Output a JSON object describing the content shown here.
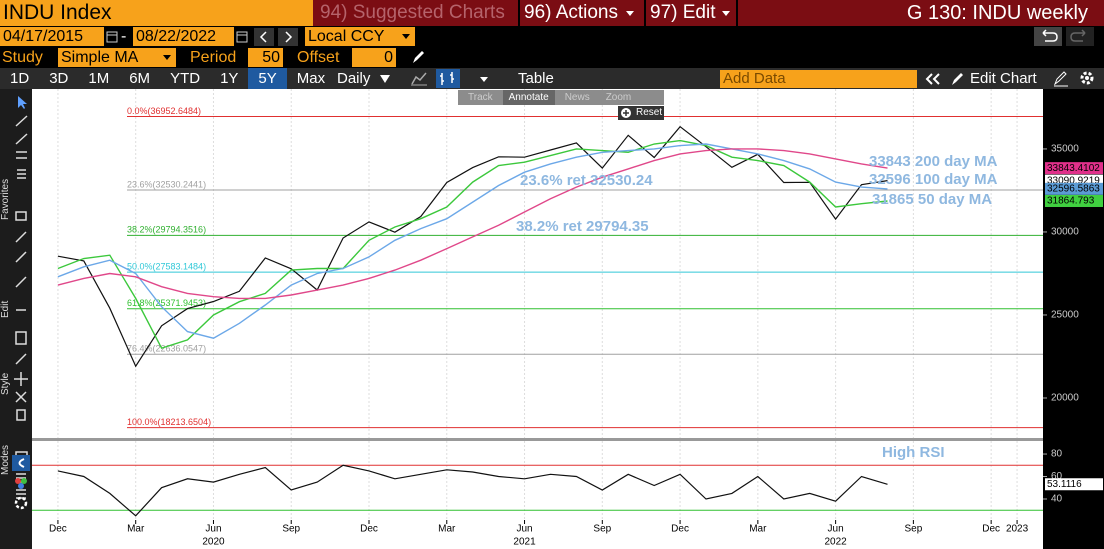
{
  "header": {
    "ticker": "INDU Index",
    "suggested": "94) Suggested Charts",
    "actions": "96) Actions",
    "edit": "97) Edit",
    "chart_id": "G 130: INDU weekly"
  },
  "controls": {
    "start": "04/17/2015",
    "end": "08/22/2022",
    "currency": "Local CCY",
    "study_label": "Study",
    "study": "Simple MA",
    "period_label": "Period",
    "period": "50",
    "offset_label": "Offset",
    "offset": "0"
  },
  "toolbar": {
    "ranges": [
      "1D",
      "3D",
      "1M",
      "6M",
      "YTD",
      "1Y",
      "5Y",
      "Max"
    ],
    "active_range": "5Y",
    "frequency": "Daily",
    "table": "Table",
    "add_data": "Add Data",
    "edit_chart": "Edit Chart"
  },
  "side_labels": [
    "Favorites",
    "Edit",
    "Style",
    "Modes"
  ],
  "overlay_menu": {
    "items": [
      "Track",
      "Annotate",
      "News",
      "Zoom"
    ],
    "reset": "Reset"
  },
  "chart_data": [
    {
      "type": "line",
      "x": [
        "2019-12",
        "2020-01",
        "2020-02",
        "2020-03",
        "2020-04",
        "2020-05",
        "2020-06",
        "2020-07",
        "2020-08",
        "2020-09",
        "2020-10",
        "2020-11",
        "2020-12",
        "2021-01",
        "2021-02",
        "2021-03",
        "2021-04",
        "2021-05",
        "2021-06",
        "2021-07",
        "2021-08",
        "2021-09",
        "2021-10",
        "2021-11",
        "2021-12",
        "2022-01",
        "2022-02",
        "2022-03",
        "2022-04",
        "2022-05",
        "2022-06",
        "2022-07",
        "2022-08"
      ],
      "xlim": [
        "2019-11",
        "2023-02"
      ],
      "xticks": [
        {
          "value": "2019-12",
          "label": "Dec"
        },
        {
          "value": "2020-03",
          "label": "Mar"
        },
        {
          "value": "2020-06",
          "label": "Jun"
        },
        {
          "value": "2020-09",
          "label": "Sep"
        },
        {
          "value": "2020-12",
          "label": "Dec"
        },
        {
          "value": "2021-03",
          "label": "Mar"
        },
        {
          "value": "2021-06",
          "label": "Jun"
        },
        {
          "value": "2021-09",
          "label": "Sep"
        },
        {
          "value": "2021-12",
          "label": "Dec"
        },
        {
          "value": "2022-03",
          "label": "Mar"
        },
        {
          "value": "2022-06",
          "label": "Jun"
        },
        {
          "value": "2022-09",
          "label": "Sep"
        },
        {
          "value": "2022-12",
          "label": "Dec"
        },
        {
          "value": "2023-01",
          "label": "2023"
        }
      ],
      "year_labels": [
        {
          "value": "2020-06",
          "label": "2020"
        },
        {
          "value": "2021-06",
          "label": "2021"
        },
        {
          "value": "2022-06",
          "label": "2022"
        }
      ],
      "ylim": [
        17590,
        38610
      ],
      "yticks": [
        20000,
        25000,
        30000,
        35000
      ],
      "xgrid": true,
      "series": [
        {
          "color": "#111111",
          "values": [
            28540,
            28256,
            25409,
            21917,
            24345,
            25383,
            25813,
            26428,
            28430,
            27782,
            26502,
            29638,
            30606,
            29983,
            30932,
            32981,
            33875,
            34529,
            34503,
            34935,
            35361,
            33844,
            35820,
            34484,
            36338,
            35132,
            33893,
            34678,
            32977,
            32990,
            30775,
            32845,
            33090
          ]
        },
        {
          "color": "#3cc83c",
          "values": [
            27800,
            28400,
            28600,
            26000,
            23000,
            23500,
            25000,
            25800,
            26300,
            27700,
            27800,
            27800,
            29500,
            30300,
            30800,
            31500,
            33000,
            34000,
            34200,
            34600,
            35000,
            34900,
            34800,
            35300,
            35500,
            35200,
            34500,
            34300,
            34000,
            33000,
            31500,
            31700,
            31865
          ]
        },
        {
          "color": "#6ca8e8",
          "values": [
            27300,
            27900,
            28300,
            27500,
            25500,
            24000,
            23600,
            24500,
            25600,
            26800,
            27500,
            27800,
            28500,
            29500,
            30200,
            30800,
            31800,
            32800,
            33600,
            34100,
            34500,
            34800,
            34900,
            35000,
            35200,
            35300,
            35000,
            34700,
            34300,
            33800,
            33000,
            32700,
            32596
          ]
        },
        {
          "color": "#e0488a",
          "values": [
            26800,
            27200,
            27500,
            27300,
            26700,
            26300,
            26100,
            26000,
            26000,
            26200,
            26500,
            26800,
            27200,
            27700,
            28300,
            29000,
            29700,
            30400,
            31200,
            32000,
            32700,
            33300,
            33800,
            34300,
            34700,
            34900,
            35000,
            35000,
            34900,
            34700,
            34400,
            34100,
            33843
          ]
        }
      ],
      "levels": [
        {
          "label": "0.0%(36952.6484)",
          "value": 36952.6484,
          "color": "#e03030"
        },
        {
          "label": "23.6%(32530.2441)",
          "value": 32530.2441,
          "color": "#a0a0a0"
        },
        {
          "label": "38.2%(29794.3516)",
          "value": 29794.3516,
          "color": "#30b030"
        },
        {
          "label": "50.0%(27583.1484)",
          "value": 27583.1484,
          "color": "#30c8d8"
        },
        {
          "label": "61.8%(25371.9453)",
          "value": 25371.9453,
          "color": "#30c030"
        },
        {
          "label": "76.4%(22636.0547)",
          "value": 22636.0547,
          "color": "#a0a0a0"
        },
        {
          "label": "100.0%(18213.6504)",
          "value": 18213.6504,
          "color": "#e03030"
        }
      ],
      "annotations": [
        "33843 200 day MA",
        "32596 100 day MA",
        "31865 50 day MA",
        "23.6% ret 32530.24",
        "38.2% ret 29794.35"
      ],
      "annotation_color": "#8fb8e0",
      "price_tags": [
        {
          "value": 33843.4102,
          "label": "33843.4102",
          "color": "#e0308a"
        },
        {
          "value": 33090.9219,
          "label": "33090.9219",
          "color": "#ffffff"
        },
        {
          "value": 32596.5863,
          "label": "32596.5863",
          "color": "#5b9bd5"
        },
        {
          "value": 31864.793,
          "label": "31864.793",
          "color": "#40d040"
        }
      ]
    },
    {
      "type": "line",
      "x": [
        "2019-12",
        "2020-01",
        "2020-02",
        "2020-03",
        "2020-04",
        "2020-05",
        "2020-06",
        "2020-07",
        "2020-08",
        "2020-09",
        "2020-10",
        "2020-11",
        "2020-12",
        "2021-01",
        "2021-02",
        "2021-03",
        "2021-04",
        "2021-05",
        "2021-06",
        "2021-07",
        "2021-08",
        "2021-09",
        "2021-10",
        "2021-11",
        "2021-12",
        "2022-01",
        "2022-02",
        "2022-03",
        "2022-04",
        "2022-05",
        "2022-06",
        "2022-07",
        "2022-08"
      ],
      "xlim": [
        "2019-11",
        "2023-02"
      ],
      "ylim": [
        21.3,
        91.6
      ],
      "yticks": [
        40,
        60,
        80
      ],
      "series": [
        {
          "color": "#111111",
          "values": [
            65,
            60,
            45,
            25,
            50,
            58,
            55,
            62,
            68,
            48,
            55,
            70,
            65,
            58,
            62,
            66,
            64,
            60,
            58,
            62,
            60,
            48,
            62,
            52,
            62,
            40,
            45,
            60,
            40,
            45,
            38,
            60,
            53.1116
          ]
        }
      ],
      "reference_lines": [
        {
          "value": 70,
          "color": "#e03030"
        },
        {
          "value": 30,
          "color": "#30c030"
        }
      ],
      "annotations": [
        "High RSI"
      ],
      "annotation_color": "#8fb8e0",
      "price_tags": [
        {
          "value": 53.1116,
          "label": "53.1116",
          "color": "#ffffff"
        }
      ]
    }
  ]
}
